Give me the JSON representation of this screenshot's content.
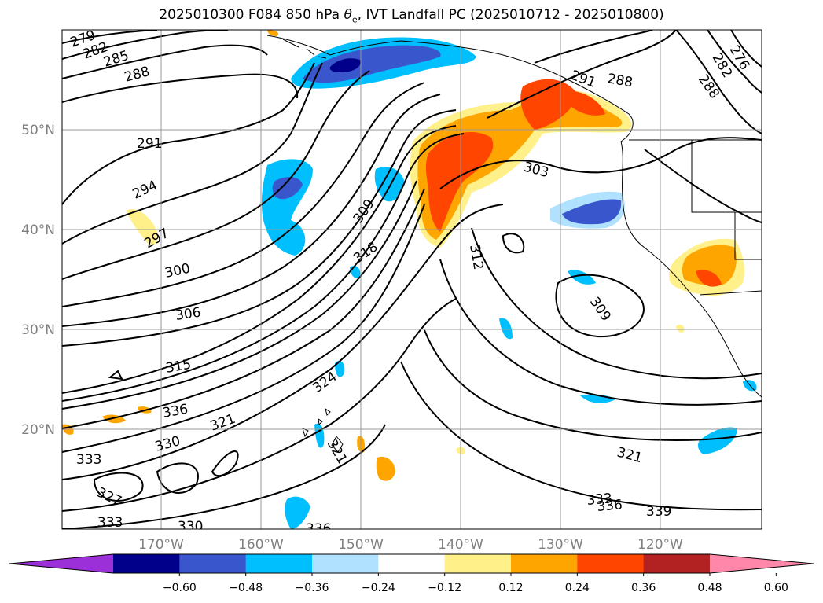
{
  "title_prefix": "2025010300 F084 850 hPa ",
  "title_symbol": "θ",
  "title_sub": "e",
  "title_suffix": ", IVT Landfall PC (2025010712 - 2025010800)",
  "longitude_labels": [
    "170°W",
    "160°W",
    "150°W",
    "140°W",
    "130°W",
    "120°W"
  ],
  "latitude_labels": [
    "50°N",
    "40°N",
    "30°N",
    "20°N"
  ],
  "contour_labels": [
    "279",
    "282",
    "285",
    "288",
    "291",
    "294",
    "297",
    "300",
    "306",
    "315",
    "336",
    "330",
    "333",
    "327",
    "333",
    "330",
    "336",
    "309",
    "318",
    "324",
    "321",
    "321",
    "312",
    "309",
    "303",
    "291",
    "288",
    "276",
    "282",
    "288",
    "321",
    "333",
    "336",
    "339"
  ],
  "colorbar": {
    "ticks": [
      "−0.60",
      "−0.48",
      "−0.36",
      "−0.24",
      "−0.12",
      "0.12",
      "0.24",
      "0.36",
      "0.48",
      "0.60"
    ],
    "colors": [
      "#9b30d9",
      "#00008b",
      "#3a56cc",
      "#00bfff",
      "#b0e2ff",
      "#ffffff",
      "#fff08a",
      "#ffa500",
      "#ff4500",
      "#b22222",
      "#ff88aa"
    ]
  }
}
